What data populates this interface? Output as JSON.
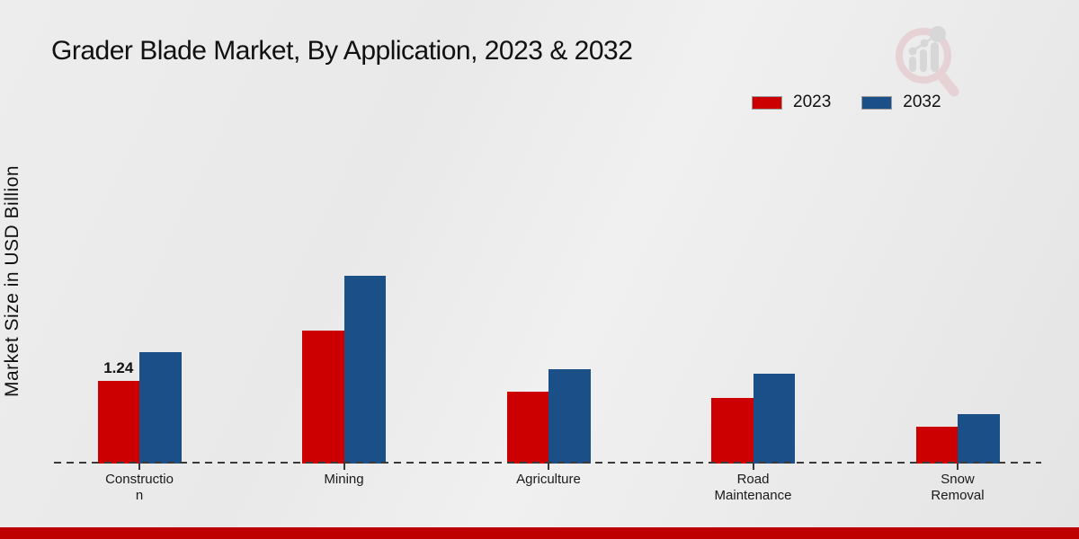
{
  "title": "Grader Blade Market, By Application, 2023 & 2032",
  "ylabel": "Market Size in USD Billion",
  "chart_data": {
    "type": "bar",
    "title": "Grader Blade Market, By Application, 2023 & 2032",
    "xlabel": "",
    "ylabel": "Market Size in USD Billion",
    "categories": [
      "Construction",
      "Mining",
      "Agriculture",
      "Road Maintenance",
      "Snow Removal"
    ],
    "category_display": [
      "Constructio\nn",
      "Mining",
      "Agriculture",
      "Road\nMaintenance",
      "Snow\nRemoval"
    ],
    "series": [
      {
        "name": "2023",
        "color": "#cc0000",
        "values": [
          1.24,
          2.0,
          1.08,
          0.98,
          0.55
        ]
      },
      {
        "name": "2032",
        "color": "#1b4f87",
        "values": [
          1.67,
          2.81,
          1.41,
          1.35,
          0.74
        ]
      }
    ],
    "bar_labels": [
      {
        "series": "2023",
        "category": "Construction",
        "text": "1.24"
      }
    ],
    "ylim": [
      0,
      3.5
    ],
    "grid": false,
    "legend_position": "top-right",
    "baseline_style": "dashed"
  },
  "colors": {
    "series_2023": "#cc0000",
    "series_2032": "#1b4f87",
    "baseline": "#3a3a3a",
    "footer_strip": "#bf0000",
    "background": "#e9e9e9"
  }
}
